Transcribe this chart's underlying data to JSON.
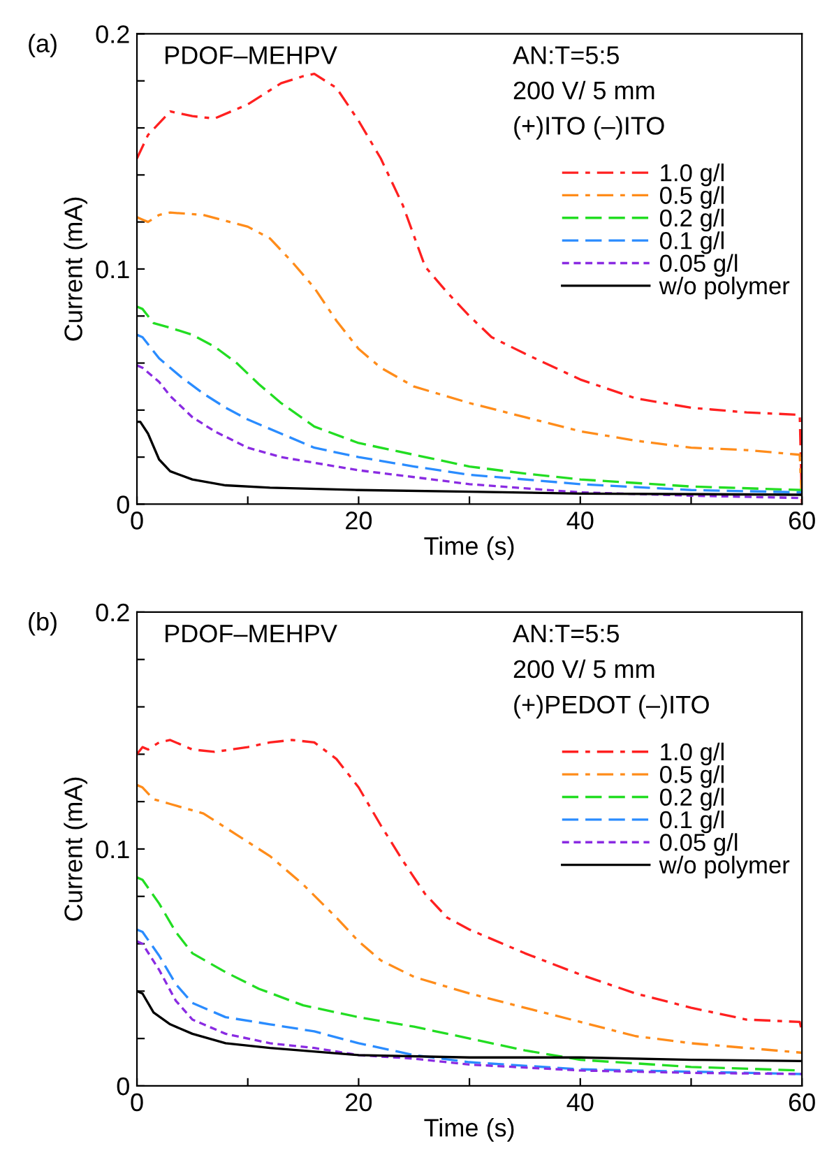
{
  "chart_data": [
    {
      "type": "line",
      "title": "(a)",
      "xlabel": "Time (s)",
      "ylabel": "Current (mA)",
      "annotations": [
        "PDOF–MEHPV",
        "AN:T=5:5",
        "200 V/ 5 mm",
        "(+)ITO (–)ITO"
      ],
      "xlim": [
        0,
        60
      ],
      "xticks": [
        0,
        {
          "value": 10,
          "label": null
        },
        20,
        {
          "value": 30,
          "label": null
        },
        40,
        {
          "value": 50,
          "label": null
        },
        60
      ],
      "ylim": [
        0,
        0.2
      ],
      "yticks": [
        0,
        {
          "value": 0.02,
          "label": null
        },
        {
          "value": 0.04,
          "label": null
        },
        {
          "value": 0.06,
          "label": null
        },
        {
          "value": 0.08,
          "label": null
        },
        0.1,
        {
          "value": 0.12,
          "label": null
        },
        {
          "value": 0.14,
          "label": null
        },
        {
          "value": 0.16,
          "label": null
        },
        {
          "value": 0.18,
          "label": null
        },
        0.2
      ],
      "grid": false,
      "legend": "top right",
      "marker": "none",
      "series": [
        {
          "name": "1.0 g/l",
          "color": "#ff2020",
          "line_style": "dashdot",
          "x": [
            0,
            1,
            3,
            5,
            7,
            10,
            13,
            15,
            16,
            18,
            20,
            22,
            24,
            26,
            28,
            30,
            32,
            35,
            40,
            45,
            50,
            55,
            59.8,
            60
          ],
          "values": [
            0.147,
            0.157,
            0.167,
            0.165,
            0.164,
            0.17,
            0.179,
            0.182,
            0.183,
            0.177,
            0.163,
            0.147,
            0.127,
            0.101,
            0.09,
            0.08,
            0.071,
            0.064,
            0.053,
            0.045,
            0.041,
            0.039,
            0.038,
            0
          ]
        },
        {
          "name": "0.5 g/l",
          "color": "#ff8c1a",
          "line_style": "dashdot",
          "x": [
            0,
            0.5,
            1,
            2,
            3,
            6,
            10,
            12,
            14,
            16,
            18,
            20,
            22,
            25,
            30,
            35,
            40,
            45,
            50,
            55,
            59.8,
            60
          ],
          "values": [
            0.122,
            0.121,
            0.12,
            0.123,
            0.124,
            0.123,
            0.118,
            0.113,
            0.103,
            0.092,
            0.078,
            0.066,
            0.058,
            0.05,
            0.043,
            0.037,
            0.031,
            0.027,
            0.024,
            0.023,
            0.021,
            0
          ]
        },
        {
          "name": "0.2 g/l",
          "color": "#22dd22",
          "line_style": "dashed",
          "x": [
            0,
            0.5,
            1.5,
            3,
            5,
            7,
            9,
            11,
            13,
            16,
            20,
            25,
            30,
            35,
            40,
            50,
            60
          ],
          "values": [
            0.084,
            0.083,
            0.077,
            0.075,
            0.072,
            0.067,
            0.06,
            0.051,
            0.043,
            0.033,
            0.026,
            0.021,
            0.016,
            0.013,
            0.0105,
            0.0075,
            0.006
          ]
        },
        {
          "name": "0.1 g/l",
          "color": "#2a8cff",
          "line_style": "dashed",
          "x": [
            0,
            0.5,
            2,
            4,
            6,
            8,
            10,
            13,
            16,
            20,
            25,
            30,
            40,
            50,
            60
          ],
          "values": [
            0.072,
            0.071,
            0.062,
            0.054,
            0.047,
            0.041,
            0.036,
            0.03,
            0.024,
            0.02,
            0.016,
            0.0125,
            0.0085,
            0.006,
            0.005
          ]
        },
        {
          "name": "0.05 g/l",
          "color": "#8a2be2",
          "line_style": "dotted",
          "x": [
            0,
            0.5,
            2,
            3,
            5,
            7,
            10,
            13,
            20,
            25,
            30,
            40,
            50,
            60
          ],
          "values": [
            0.059,
            0.058,
            0.052,
            0.046,
            0.037,
            0.031,
            0.024,
            0.02,
            0.0144,
            0.0115,
            0.0085,
            0.005,
            0.0036,
            0.0026
          ]
        },
        {
          "name": "w/o polymer",
          "color": "#000000",
          "line_style": "solid",
          "x": [
            0,
            0.3,
            1,
            2,
            3,
            5,
            8,
            12,
            20,
            30,
            40,
            60
          ],
          "values": [
            0.035,
            0.035,
            0.03,
            0.019,
            0.014,
            0.0105,
            0.008,
            0.007,
            0.006,
            0.0053,
            0.0045,
            0.004
          ]
        }
      ]
    },
    {
      "type": "line",
      "title": "(b)",
      "xlabel": "Time (s)",
      "ylabel": "Current (mA)",
      "annotations": [
        "PDOF–MEHPV",
        "AN:T=5:5",
        "200 V/ 5 mm",
        "(+)PEDOT (–)ITO"
      ],
      "xlim": [
        0,
        60
      ],
      "xticks": [
        0,
        {
          "value": 10,
          "label": null
        },
        20,
        {
          "value": 30,
          "label": null
        },
        40,
        {
          "value": 50,
          "label": null
        },
        60
      ],
      "ylim": [
        0,
        0.2
      ],
      "yticks": [
        0,
        {
          "value": 0.02,
          "label": null
        },
        {
          "value": 0.04,
          "label": null
        },
        {
          "value": 0.06,
          "label": null
        },
        {
          "value": 0.08,
          "label": null
        },
        0.1,
        {
          "value": 0.12,
          "label": null
        },
        {
          "value": 0.14,
          "label": null
        },
        {
          "value": 0.16,
          "label": null
        },
        {
          "value": 0.18,
          "label": null
        },
        0.2
      ],
      "grid": false,
      "legend": "top right",
      "marker": "none",
      "series": [
        {
          "name": "1.0 g/l",
          "color": "#ff2020",
          "line_style": "dashdot",
          "x": [
            0,
            0.5,
            1,
            2,
            3,
            5,
            7,
            10,
            12,
            14,
            16,
            18,
            20,
            22,
            24,
            26,
            28,
            30,
            35,
            40,
            45,
            50,
            55,
            59.8,
            60
          ],
          "values": [
            0.14,
            0.143,
            0.142,
            0.145,
            0.146,
            0.142,
            0.141,
            0.143,
            0.145,
            0.146,
            0.145,
            0.138,
            0.126,
            0.11,
            0.095,
            0.081,
            0.071,
            0.066,
            0.056,
            0.047,
            0.039,
            0.033,
            0.028,
            0.027,
            0.023
          ]
        },
        {
          "name": "0.5 g/l",
          "color": "#ff8c1a",
          "line_style": "dashdot",
          "x": [
            0,
            0.5,
            1.5,
            3,
            6,
            9,
            12,
            15,
            18,
            20,
            22,
            25,
            30,
            35,
            40,
            45,
            50,
            55,
            60
          ],
          "values": [
            0.127,
            0.126,
            0.121,
            0.119,
            0.115,
            0.106,
            0.097,
            0.085,
            0.071,
            0.061,
            0.053,
            0.046,
            0.039,
            0.033,
            0.027,
            0.021,
            0.018,
            0.016,
            0.014
          ]
        },
        {
          "name": "0.2 g/l",
          "color": "#22dd22",
          "line_style": "dashed",
          "x": [
            0,
            0.5,
            2,
            3.5,
            5,
            8,
            11,
            15,
            20,
            25,
            30,
            35,
            40,
            50,
            60
          ],
          "values": [
            0.088,
            0.087,
            0.077,
            0.065,
            0.056,
            0.048,
            0.041,
            0.034,
            0.029,
            0.025,
            0.02,
            0.015,
            0.011,
            0.008,
            0.0065
          ]
        },
        {
          "name": "0.1 g/l",
          "color": "#2a8cff",
          "line_style": "dashed",
          "x": [
            0,
            0.5,
            2,
            3.5,
            5,
            8,
            12,
            16,
            20,
            25,
            30,
            40,
            50,
            60
          ],
          "values": [
            0.066,
            0.065,
            0.055,
            0.043,
            0.035,
            0.029,
            0.026,
            0.023,
            0.018,
            0.013,
            0.01,
            0.007,
            0.006,
            0.005
          ]
        },
        {
          "name": "0.05 g/l",
          "color": "#8a2be2",
          "line_style": "dotted",
          "x": [
            0,
            0.5,
            2,
            3.5,
            5,
            8,
            12,
            16,
            20,
            25,
            30,
            40,
            50,
            60
          ],
          "values": [
            0.061,
            0.06,
            0.049,
            0.036,
            0.028,
            0.022,
            0.018,
            0.016,
            0.013,
            0.0115,
            0.009,
            0.0065,
            0.0055,
            0.005
          ]
        },
        {
          "name": "w/o polymer",
          "color": "#000000",
          "line_style": "solid",
          "x": [
            0,
            0.5,
            1.5,
            3,
            5,
            8,
            12,
            20,
            30,
            40,
            50,
            60
          ],
          "values": [
            0.04,
            0.039,
            0.031,
            0.026,
            0.022,
            0.018,
            0.016,
            0.013,
            0.012,
            0.012,
            0.011,
            0.0105
          ]
        }
      ]
    }
  ]
}
